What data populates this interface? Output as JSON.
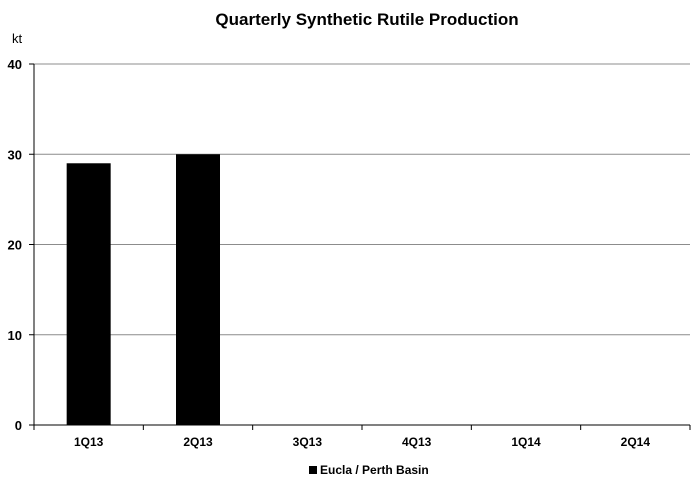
{
  "chart_data": {
    "type": "bar",
    "title": "Quarterly Synthetic Rutile Production",
    "ylabel": "kt",
    "xlabel": "",
    "categories": [
      "1Q13",
      "2Q13",
      "3Q13",
      "4Q13",
      "1Q14",
      "2Q14"
    ],
    "series": [
      {
        "name": "Eucla / Perth Basin",
        "values": [
          29,
          30,
          null,
          null,
          null,
          null
        ],
        "color": "#000000"
      }
    ],
    "ylim": [
      0,
      40
    ],
    "yticks": [
      0,
      10,
      20,
      30,
      40
    ],
    "grid": true,
    "legend": "bottom-center"
  }
}
